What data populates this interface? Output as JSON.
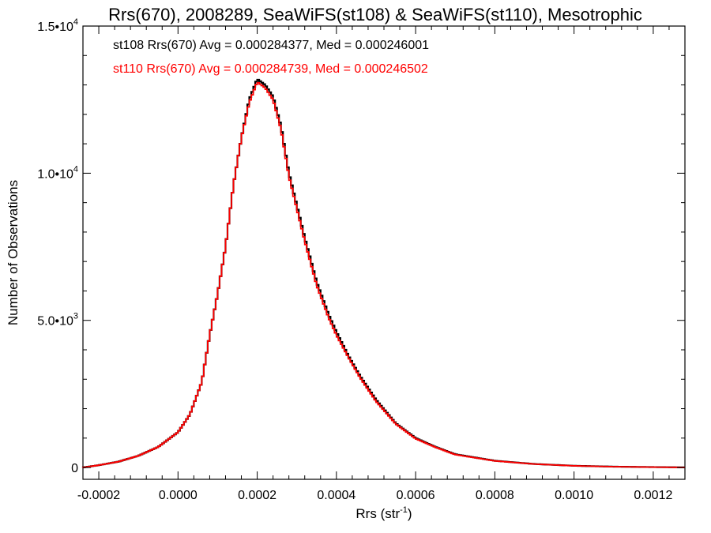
{
  "chart_data": {
    "type": "histogram",
    "title": "Rrs(670), 2008289, SeaWiFS(st108) & SeaWiFS(st110), Mesotrophic",
    "xlabel_base": "Rrs (str",
    "xlabel_sup": "-1",
    "xlabel_end": ")",
    "ylabel": "Number of Observations",
    "xlim": [
      -0.00024,
      0.00128
    ],
    "ylim": [
      -400,
      15000
    ],
    "x_ticks": [
      {
        "value": -0.0002,
        "label": "-0.0002"
      },
      {
        "value": 0.0,
        "label": "0.0000"
      },
      {
        "value": 0.0002,
        "label": "0.0002"
      },
      {
        "value": 0.0004,
        "label": "0.0004"
      },
      {
        "value": 0.0006,
        "label": "0.0006"
      },
      {
        "value": 0.0008,
        "label": "0.0008"
      },
      {
        "value": 0.001,
        "label": "0.0010"
      },
      {
        "value": 0.0012,
        "label": "0.0012"
      }
    ],
    "y_ticks": [
      {
        "value": 0,
        "base": "0",
        "exp": ""
      },
      {
        "value": 5000,
        "base": "5.0•10",
        "exp": "3"
      },
      {
        "value": 10000,
        "base": "1.0•10",
        "exp": "4"
      },
      {
        "value": 15000,
        "base": "1.5•10",
        "exp": "4"
      }
    ],
    "series": [
      {
        "name": "st108",
        "color": "#000000",
        "annotation": "st108 Rrs(670) Avg = 0.000284377, Med = 0.000246001",
        "anchors": [
          [
            -0.00024,
            0
          ],
          [
            -0.0002,
            80
          ],
          [
            -0.00015,
            200
          ],
          [
            -0.0001,
            400
          ],
          [
            -5e-05,
            700
          ],
          [
            0.0,
            1200
          ],
          [
            3e-05,
            1800
          ],
          [
            6e-05,
            2900
          ],
          [
            8e-05,
            4500
          ],
          [
            0.0001,
            5900
          ],
          [
            0.00012,
            7500
          ],
          [
            0.00014,
            9600
          ],
          [
            0.00016,
            11200
          ],
          [
            0.00018,
            12500
          ],
          [
            0.0002,
            13200
          ],
          [
            0.00022,
            13000
          ],
          [
            0.00024,
            12600
          ],
          [
            0.00026,
            11600
          ],
          [
            0.00028,
            10000
          ],
          [
            0.0003,
            8900
          ],
          [
            0.00032,
            7800
          ],
          [
            0.00035,
            6300
          ],
          [
            0.00038,
            5200
          ],
          [
            0.0004,
            4600
          ],
          [
            0.00043,
            3800
          ],
          [
            0.00046,
            3100
          ],
          [
            0.0005,
            2300
          ],
          [
            0.00055,
            1500
          ],
          [
            0.0006,
            1000
          ],
          [
            0.00065,
            700
          ],
          [
            0.0007,
            450
          ],
          [
            0.0008,
            230
          ],
          [
            0.0009,
            120
          ],
          [
            0.001,
            60
          ],
          [
            0.0011,
            30
          ],
          [
            0.0012,
            15
          ],
          [
            0.00128,
            5
          ]
        ]
      },
      {
        "name": "st110",
        "color": "#ff0000",
        "annotation": "st110 Rrs(670) Avg = 0.000284739, Med = 0.000246502",
        "anchors": [
          [
            -0.00024,
            0
          ],
          [
            -0.0002,
            80
          ],
          [
            -0.00015,
            200
          ],
          [
            -0.0001,
            400
          ],
          [
            -5e-05,
            700
          ],
          [
            0.0,
            1200
          ],
          [
            3e-05,
            1800
          ],
          [
            6e-05,
            2900
          ],
          [
            8e-05,
            4500
          ],
          [
            0.0001,
            5900
          ],
          [
            0.00012,
            7500
          ],
          [
            0.00014,
            9600
          ],
          [
            0.00016,
            11200
          ],
          [
            0.00018,
            12400
          ],
          [
            0.0002,
            13100
          ],
          [
            0.00022,
            12900
          ],
          [
            0.00024,
            12500
          ],
          [
            0.00026,
            11500
          ],
          [
            0.00028,
            9900
          ],
          [
            0.0003,
            8800
          ],
          [
            0.00032,
            7700
          ],
          [
            0.00035,
            6200
          ],
          [
            0.00038,
            5100
          ],
          [
            0.0004,
            4500
          ],
          [
            0.00043,
            3750
          ],
          [
            0.00046,
            3050
          ],
          [
            0.0005,
            2250
          ],
          [
            0.00055,
            1480
          ],
          [
            0.0006,
            980
          ],
          [
            0.00065,
            690
          ],
          [
            0.0007,
            440
          ],
          [
            0.0008,
            225
          ],
          [
            0.0009,
            118
          ],
          [
            0.001,
            58
          ],
          [
            0.0011,
            29
          ],
          [
            0.0012,
            14
          ],
          [
            0.00128,
            5
          ]
        ]
      }
    ]
  }
}
